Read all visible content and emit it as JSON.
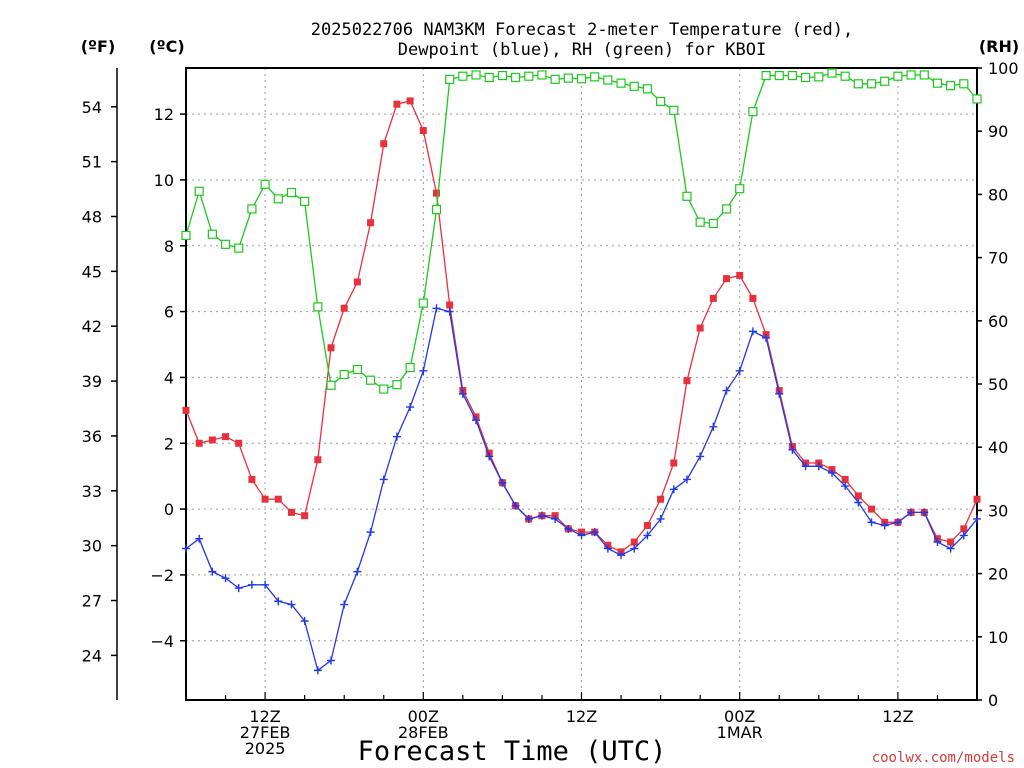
{
  "chart_data": {
    "type": "line",
    "title": "2025022706 NAM3KM Forecast 2-meter Temperature (red),",
    "title_line2": "Dewpoint (blue), RH (green) for KBOI",
    "xlabel": "Forecast Time (UTC)",
    "ylabel_left_outer": "(ºF)",
    "ylabel_left_inner": "(ºC)",
    "ylabel_right": "(RH)",
    "credit": "coolwx.com/models",
    "x_start": "2025-02-27 06Z",
    "x_step_hours": 1,
    "xlim": [
      0,
      60
    ],
    "ylim_c": [
      -5.8,
      13.4
    ],
    "ylim_rh": [
      0,
      100
    ],
    "yticks_c": [
      "-4",
      "-2",
      "0",
      "2",
      "4",
      "6",
      "8",
      "10",
      "12"
    ],
    "yticks_f": [
      "24",
      "27",
      "30",
      "33",
      "36",
      "39",
      "42",
      "45",
      "48",
      "51",
      "54"
    ],
    "yticks_rh": [
      "0",
      "10",
      "20",
      "30",
      "40",
      "50",
      "60",
      "70",
      "80",
      "90",
      "100"
    ],
    "xtick_labels": [
      {
        "x": 6,
        "lines": [
          "12Z",
          "27FEB",
          "2025"
        ]
      },
      {
        "x": 18,
        "lines": [
          "00Z",
          "28FEB"
        ]
      },
      {
        "x": 30,
        "lines": [
          "12Z"
        ]
      },
      {
        "x": 42,
        "lines": [
          "00Z",
          "1MAR"
        ]
      },
      {
        "x": 54,
        "lines": [
          "12Z"
        ]
      }
    ],
    "grid": true,
    "series": [
      {
        "name": "Temperature",
        "axis": "C",
        "color": "#e8313c",
        "marker": "filled-square",
        "values": [
          3.0,
          2.0,
          2.1,
          2.2,
          2.0,
          0.9,
          0.3,
          0.3,
          -0.1,
          -0.2,
          1.5,
          4.9,
          6.1,
          6.9,
          8.7,
          11.1,
          12.3,
          12.4,
          11.5,
          9.6,
          6.2,
          3.6,
          2.8,
          1.7,
          0.8,
          0.1,
          -0.3,
          -0.2,
          -0.2,
          -0.6,
          -0.7,
          -0.7,
          -1.1,
          -1.3,
          -1.0,
          -0.5,
          0.3,
          1.4,
          3.9,
          5.5,
          6.4,
          7.0,
          7.1,
          6.4,
          5.3,
          3.6,
          1.9,
          1.4,
          1.4,
          1.2,
          0.9,
          0.4,
          0.0,
          -0.4,
          -0.4,
          -0.1,
          -0.1,
          -0.9,
          -1.0,
          -0.6,
          0.3
        ]
      },
      {
        "name": "Dewpoint",
        "axis": "C",
        "color": "#2138e8",
        "marker": "plus",
        "values": [
          -1.2,
          -0.9,
          -1.9,
          -2.1,
          -2.4,
          -2.3,
          -2.3,
          -2.8,
          -2.9,
          -3.4,
          -4.9,
          -4.6,
          -2.9,
          -1.9,
          -0.7,
          0.9,
          2.2,
          3.1,
          4.2,
          6.1,
          6.0,
          3.5,
          2.7,
          1.6,
          0.8,
          0.1,
          -0.3,
          -0.2,
          -0.3,
          -0.6,
          -0.8,
          -0.7,
          -1.2,
          -1.4,
          -1.2,
          -0.8,
          -0.3,
          0.6,
          0.9,
          1.6,
          2.5,
          3.6,
          4.2,
          5.4,
          5.2,
          3.5,
          1.8,
          1.3,
          1.3,
          1.1,
          0.7,
          0.2,
          -0.4,
          -0.5,
          -0.4,
          -0.1,
          -0.1,
          -1.0,
          -1.2,
          -0.8,
          -0.3
        ]
      },
      {
        "name": "RH",
        "axis": "RH",
        "color": "#1fc81f",
        "marker": "open-square",
        "values": [
          73.5,
          80.5,
          73.7,
          72.1,
          71.5,
          77.7,
          81.6,
          79.3,
          80.3,
          78.9,
          62.2,
          49.8,
          51.5,
          52.3,
          50.6,
          49.2,
          49.9,
          52.6,
          62.8,
          77.6,
          98.2,
          98.7,
          98.9,
          98.5,
          98.8,
          98.5,
          98.7,
          98.9,
          98.2,
          98.4,
          98.3,
          98.6,
          98.1,
          97.6,
          97.1,
          96.7,
          94.7,
          93.3,
          79.7,
          75.6,
          75.4,
          77.7,
          80.9,
          93.1,
          98.8,
          98.8,
          98.8,
          98.5,
          98.6,
          99.2,
          98.7,
          97.5,
          97.5,
          97.9,
          98.7,
          98.9,
          98.9,
          97.6,
          97.2,
          97.5,
          95.1
        ]
      }
    ]
  }
}
